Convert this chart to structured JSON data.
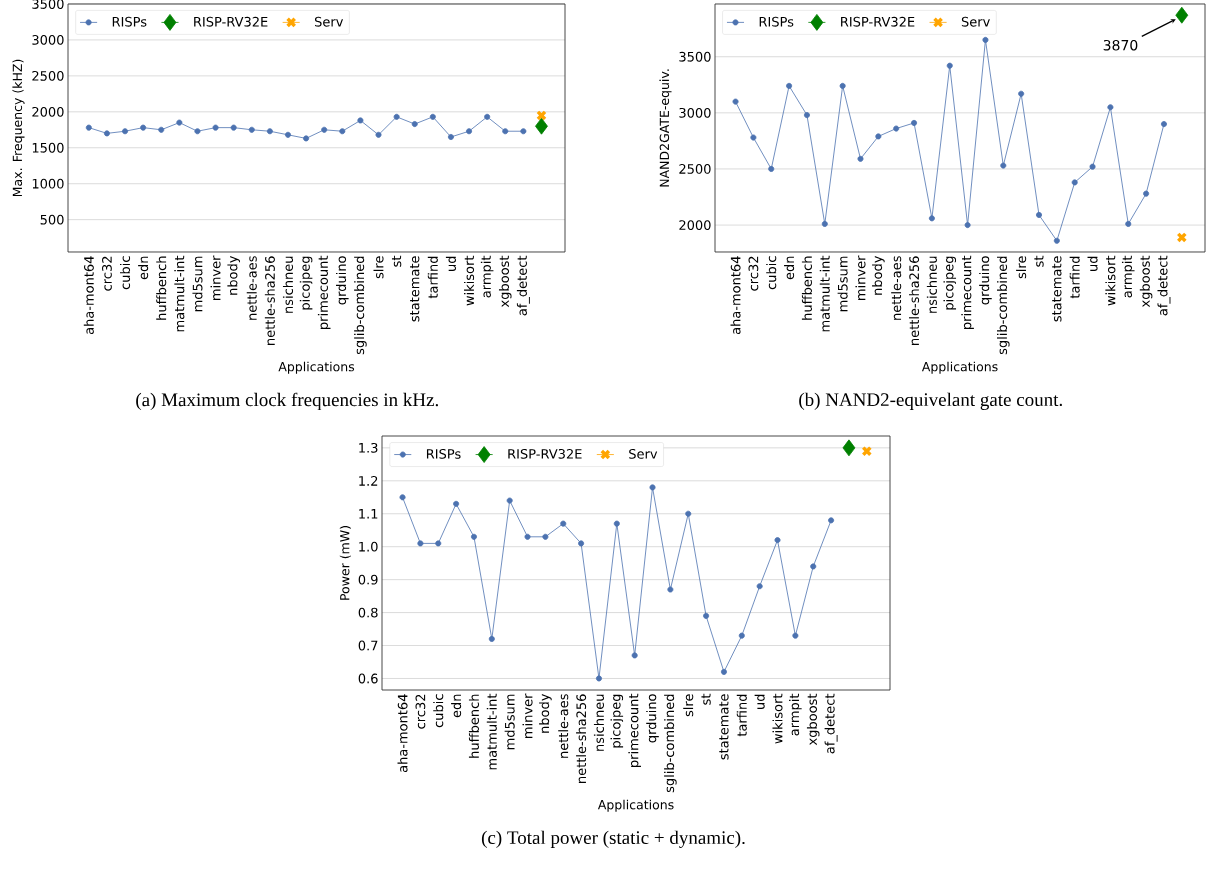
{
  "chart_data": [
    {
      "type": "line",
      "xlabel": "Applications",
      "ylabel": "Max. Frequency (kHZ)",
      "grid": "y",
      "legend": "top left",
      "categories": [
        "aha-mont64",
        "crc32",
        "cubic",
        "edn",
        "huffbench",
        "matmult-int",
        "md5sum",
        "minver",
        "nbody",
        "nettle-aes",
        "nettle-sha256",
        "nsichneu",
        "picojpeg",
        "primecount",
        "qrduino",
        "sglib-combined",
        "slre",
        "st",
        "statemate",
        "tarfind",
        "ud",
        "wikisort",
        "armpit",
        "xgboost",
        "af_detect",
        null
      ],
      "series": [
        {
          "name": "RISPs",
          "color": "#4c72b0",
          "marker": "circle",
          "values": [
            1780,
            1700,
            1730,
            1780,
            1750,
            1850,
            1730,
            1780,
            1780,
            1750,
            1730,
            1680,
            1630,
            1750,
            1730,
            1880,
            1680,
            1930,
            1830,
            1930,
            1650,
            1730,
            1930,
            1730,
            1730,
            null
          ]
        },
        {
          "name": "RISP-RV32E",
          "color": "#008000",
          "marker": "diamond",
          "values": [
            null,
            null,
            null,
            null,
            null,
            null,
            null,
            null,
            null,
            null,
            null,
            null,
            null,
            null,
            null,
            null,
            null,
            null,
            null,
            null,
            null,
            null,
            null,
            null,
            null,
            1800
          ]
        },
        {
          "name": "Serv",
          "color": "#ffa500",
          "marker": "cross",
          "values": [
            null,
            null,
            null,
            null,
            null,
            null,
            null,
            null,
            null,
            null,
            null,
            null,
            null,
            null,
            null,
            null,
            null,
            null,
            null,
            null,
            null,
            null,
            null,
            null,
            null,
            1950
          ]
        }
      ],
      "ylim": [
        50,
        3500
      ],
      "yticks": [
        500,
        1000,
        1500,
        2000,
        2500,
        3000,
        3500
      ],
      "annotations": [
        "(a) Maximum clock frequencies in kHz."
      ]
    },
    {
      "type": "line",
      "xlabel": "Applications",
      "ylabel": "NAND2GATE-equiv.",
      "grid": "y",
      "legend": "top left",
      "categories": [
        "aha-mont64",
        "crc32",
        "cubic",
        "edn",
        "huffbench",
        "matmult-int",
        "md5sum",
        "minver",
        "nbody",
        "nettle-aes",
        "nettle-sha256",
        "nsichneu",
        "picojpeg",
        "primecount",
        "qrduino",
        "sglib-combined",
        "slre",
        "st",
        "statemate",
        "tarfind",
        "ud",
        "wikisort",
        "armpit",
        "xgboost",
        "af_detect",
        null
      ],
      "series": [
        {
          "name": "RISPs",
          "color": "#4c72b0",
          "marker": "circle",
          "values": [
            3100,
            2780,
            2500,
            3240,
            2980,
            2010,
            3240,
            2590,
            2790,
            2860,
            2910,
            2060,
            3420,
            2000,
            3650,
            2530,
            3170,
            2090,
            1860,
            2380,
            2520,
            3050,
            2010,
            2280,
            2900,
            null
          ]
        },
        {
          "name": "RISP-RV32E",
          "color": "#008000",
          "marker": "diamond",
          "values": [
            null,
            null,
            null,
            null,
            null,
            null,
            null,
            null,
            null,
            null,
            null,
            null,
            null,
            null,
            null,
            null,
            null,
            null,
            null,
            null,
            null,
            null,
            null,
            null,
            null,
            3870
          ]
        },
        {
          "name": "Serv",
          "color": "#ffa500",
          "marker": "cross",
          "values": [
            null,
            null,
            null,
            null,
            null,
            null,
            null,
            null,
            null,
            null,
            null,
            null,
            null,
            null,
            null,
            null,
            null,
            null,
            null,
            null,
            null,
            null,
            null,
            null,
            null,
            1890
          ]
        }
      ],
      "ylim": [
        1760,
        3970
      ],
      "yticks": [
        2000,
        2500,
        3000,
        3500
      ],
      "annotations": [
        "3870",
        "(b) NAND2-equivelant gate count."
      ]
    },
    {
      "type": "line",
      "xlabel": "Applications",
      "ylabel": "Power (mW)",
      "grid": "y",
      "legend": "top left",
      "categories": [
        "aha-mont64",
        "crc32",
        "cubic",
        "edn",
        "huffbench",
        "matmult-int",
        "md5sum",
        "minver",
        "nbody",
        "nettle-aes",
        "nettle-sha256",
        "nsichneu",
        "picojpeg",
        "primecount",
        "qrduino",
        "sglib-combined",
        "slre",
        "st",
        "statemate",
        "tarfind",
        "ud",
        "wikisort",
        "armpit",
        "xgboost",
        "af_detect",
        null,
        null
      ],
      "series": [
        {
          "name": "RISPs",
          "color": "#4c72b0",
          "marker": "circle",
          "values": [
            1.15,
            1.01,
            1.01,
            1.13,
            1.03,
            0.72,
            1.14,
            1.03,
            1.03,
            1.07,
            1.01,
            0.6,
            1.07,
            0.67,
            1.18,
            0.87,
            1.1,
            0.79,
            0.62,
            0.73,
            0.88,
            1.02,
            0.73,
            0.94,
            1.08,
            null,
            null
          ]
        },
        {
          "name": "RISP-RV32E",
          "color": "#008000",
          "marker": "diamond",
          "values": [
            null,
            null,
            null,
            null,
            null,
            null,
            null,
            null,
            null,
            null,
            null,
            null,
            null,
            null,
            null,
            null,
            null,
            null,
            null,
            null,
            null,
            null,
            null,
            null,
            null,
            1.3,
            null
          ]
        },
        {
          "name": "Serv",
          "color": "#ffa500",
          "marker": "cross",
          "values": [
            null,
            null,
            null,
            null,
            null,
            null,
            null,
            null,
            null,
            null,
            null,
            null,
            null,
            null,
            null,
            null,
            null,
            null,
            null,
            null,
            null,
            null,
            null,
            null,
            null,
            null,
            1.29
          ]
        }
      ],
      "ylim": [
        0.565,
        1.336
      ],
      "yticks": [
        0.6,
        0.7,
        0.8,
        0.9,
        {
          "value": 1.0,
          "label": "1.0"
        },
        1.1,
        1.2,
        1.3
      ],
      "annotations": [
        "(c) Total power (static + dynamic)."
      ]
    }
  ]
}
